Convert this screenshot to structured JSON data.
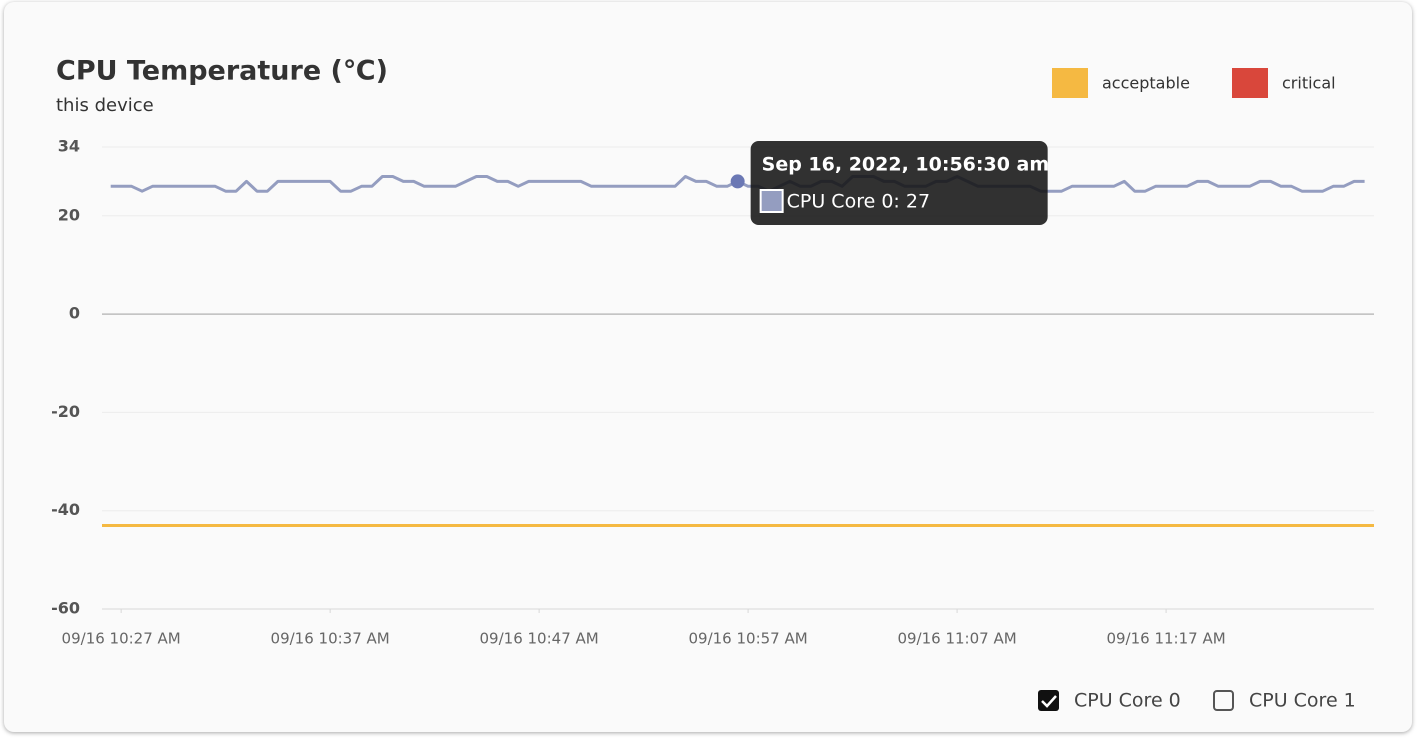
{
  "chart_data": {
    "type": "line",
    "title": "CPU Temperature (℃)",
    "subtitle": "this device",
    "x": [
      "2022-09-16T10:26:30",
      "2022-09-16T10:27:00",
      "2022-09-16T10:27:30",
      "2022-09-16T10:28:00",
      "2022-09-16T10:28:30",
      "2022-09-16T10:29:00",
      "2022-09-16T10:29:30",
      "2022-09-16T10:30:00",
      "2022-09-16T10:30:30",
      "2022-09-16T10:31:00",
      "2022-09-16T10:31:30",
      "2022-09-16T10:32:00",
      "2022-09-16T10:32:30",
      "2022-09-16T10:33:00",
      "2022-09-16T10:33:30",
      "2022-09-16T10:34:00",
      "2022-09-16T10:34:30",
      "2022-09-16T10:35:00",
      "2022-09-16T10:35:30",
      "2022-09-16T10:36:00",
      "2022-09-16T10:36:30",
      "2022-09-16T10:37:00",
      "2022-09-16T10:37:30",
      "2022-09-16T10:38:00",
      "2022-09-16T10:38:30",
      "2022-09-16T10:39:00",
      "2022-09-16T10:39:30",
      "2022-09-16T10:40:00",
      "2022-09-16T10:40:30",
      "2022-09-16T10:41:00",
      "2022-09-16T10:41:30",
      "2022-09-16T10:42:00",
      "2022-09-16T10:42:30",
      "2022-09-16T10:43:00",
      "2022-09-16T10:43:30",
      "2022-09-16T10:44:00",
      "2022-09-16T10:44:30",
      "2022-09-16T10:45:00",
      "2022-09-16T10:45:30",
      "2022-09-16T10:46:00",
      "2022-09-16T10:46:30",
      "2022-09-16T10:47:00",
      "2022-09-16T10:47:30",
      "2022-09-16T10:48:00",
      "2022-09-16T10:48:30",
      "2022-09-16T10:49:00",
      "2022-09-16T10:49:30",
      "2022-09-16T10:50:00",
      "2022-09-16T10:50:30",
      "2022-09-16T10:51:00",
      "2022-09-16T10:51:30",
      "2022-09-16T10:52:00",
      "2022-09-16T10:52:30",
      "2022-09-16T10:53:00",
      "2022-09-16T10:53:30",
      "2022-09-16T10:54:00",
      "2022-09-16T10:54:30",
      "2022-09-16T10:55:00",
      "2022-09-16T10:55:30",
      "2022-09-16T10:56:00",
      "2022-09-16T10:56:30",
      "2022-09-16T10:57:00",
      "2022-09-16T10:57:30",
      "2022-09-16T10:58:00",
      "2022-09-16T10:58:30",
      "2022-09-16T10:59:00",
      "2022-09-16T10:59:30",
      "2022-09-16T11:00:00",
      "2022-09-16T11:00:30",
      "2022-09-16T11:01:00",
      "2022-09-16T11:01:30",
      "2022-09-16T11:02:00",
      "2022-09-16T11:02:30",
      "2022-09-16T11:03:00",
      "2022-09-16T11:03:30",
      "2022-09-16T11:04:00",
      "2022-09-16T11:04:30",
      "2022-09-16T11:05:00",
      "2022-09-16T11:05:30",
      "2022-09-16T11:06:00",
      "2022-09-16T11:06:30",
      "2022-09-16T11:07:00",
      "2022-09-16T11:07:30",
      "2022-09-16T11:08:00",
      "2022-09-16T11:08:30",
      "2022-09-16T11:09:00",
      "2022-09-16T11:09:30",
      "2022-09-16T11:10:00",
      "2022-09-16T11:10:30",
      "2022-09-16T11:11:00",
      "2022-09-16T11:11:30",
      "2022-09-16T11:12:00",
      "2022-09-16T11:12:30",
      "2022-09-16T11:13:00",
      "2022-09-16T11:13:30",
      "2022-09-16T11:14:00",
      "2022-09-16T11:14:30",
      "2022-09-16T11:15:00",
      "2022-09-16T11:15:30",
      "2022-09-16T11:16:00",
      "2022-09-16T11:16:30",
      "2022-09-16T11:17:00",
      "2022-09-16T11:17:30",
      "2022-09-16T11:18:00",
      "2022-09-16T11:18:30",
      "2022-09-16T11:19:00",
      "2022-09-16T11:19:30",
      "2022-09-16T11:20:00",
      "2022-09-16T11:20:30",
      "2022-09-16T11:21:00",
      "2022-09-16T11:21:30",
      "2022-09-16T11:22:00",
      "2022-09-16T11:22:30",
      "2022-09-16T11:23:00",
      "2022-09-16T11:23:30",
      "2022-09-16T11:24:00",
      "2022-09-16T11:24:30",
      "2022-09-16T11:25:00",
      "2022-09-16T11:25:30",
      "2022-09-16T11:26:00",
      "2022-09-16T11:26:30"
    ],
    "series": [
      {
        "name": "CPU Core 0",
        "color": "#949dc0",
        "values": [
          26,
          26,
          26,
          25,
          26,
          26,
          26,
          26,
          26,
          26,
          26,
          25,
          25,
          27,
          25,
          25,
          27,
          27,
          27,
          27,
          27,
          27,
          25,
          25,
          26,
          26,
          28,
          28,
          27,
          27,
          26,
          26,
          26,
          26,
          27,
          28,
          28,
          27,
          27,
          26,
          27,
          27,
          27,
          27,
          27,
          27,
          26,
          26,
          26,
          26,
          26,
          26,
          26,
          26,
          26,
          28,
          27,
          27,
          26,
          26,
          27,
          26,
          26,
          25,
          26,
          27,
          26,
          26,
          27,
          27,
          26,
          28,
          28,
          28,
          27,
          27,
          26,
          26,
          26,
          27,
          27,
          28,
          27,
          26,
          26,
          26,
          26,
          26,
          26,
          25,
          25,
          25,
          26,
          26,
          26,
          26,
          26,
          27,
          25,
          25,
          26,
          26,
          26,
          26,
          27,
          27,
          26,
          26,
          26,
          26,
          27,
          27,
          26,
          26,
          25,
          25,
          25,
          26,
          26,
          27,
          27
        ]
      }
    ],
    "thresholds": [
      {
        "name": "acceptable",
        "color": "#f5b942",
        "value": -43
      },
      {
        "name": "critical",
        "color": "#d9473b"
      }
    ],
    "xlim": [
      "2022-09-16T10:26:05",
      "2022-09-16T11:26:57"
    ],
    "xticks": [
      {
        "value": "2022-09-16T10:27:00",
        "label": "09/16 10:27 AM"
      },
      {
        "value": "2022-09-16T10:37:00",
        "label": "09/16 10:37 AM"
      },
      {
        "value": "2022-09-16T10:47:00",
        "label": "09/16 10:47 AM"
      },
      {
        "value": "2022-09-16T10:57:00",
        "label": "09/16 10:57 AM"
      },
      {
        "value": "2022-09-16T11:07:00",
        "label": "09/16 11:07 AM"
      },
      {
        "value": "2022-09-16T11:17:00",
        "label": "09/16 11:17 AM"
      }
    ],
    "ylim": [
      -60,
      34
    ],
    "yticks": [
      34,
      20,
      0,
      -20,
      -40,
      -60
    ],
    "grid": true,
    "legend_position": "top-right",
    "tooltip": {
      "index": 60,
      "title": "Sep 16, 2022, 10:56:30 am",
      "text": "CPU Core 0: 27"
    },
    "series_toggles": [
      {
        "label": "CPU Core 0",
        "checked": true
      },
      {
        "label": "CPU Core 1",
        "checked": false
      }
    ]
  }
}
